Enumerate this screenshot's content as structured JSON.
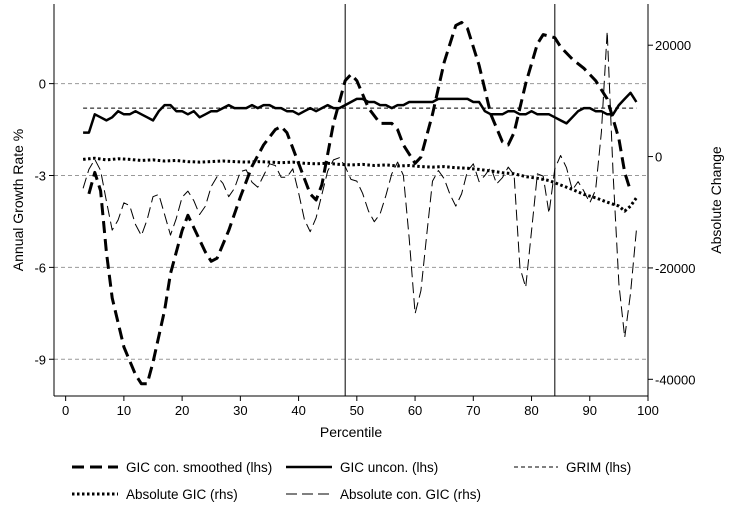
{
  "chart_data": {
    "type": "line",
    "xlabel": "Percentile",
    "ylabel_left": "Annual Growth Rate %",
    "ylabel_right": "Absolute Change",
    "xlim": [
      -2,
      100
    ],
    "ylim_left": [
      -10.2,
      2.6
    ],
    "ylim_right": [
      -43000,
      27400
    ],
    "x_ticks": [
      0,
      10,
      20,
      30,
      40,
      50,
      60,
      70,
      80,
      90,
      100
    ],
    "y_ticks_left": [
      0,
      -3,
      -6,
      -9
    ],
    "y_ticks_right": [
      20000,
      0,
      -20000,
      -40000
    ],
    "grid_left_y": [
      0,
      -3,
      -6,
      -9
    ],
    "vertical_lines_x": [
      48,
      84
    ],
    "grim_value": -0.8,
    "series": [
      {
        "name": "GIC con. smoothed (lhs)",
        "axis": "left",
        "style": "long-dash-thick",
        "points": [
          [
            4,
            -3.6
          ],
          [
            5,
            -2.9
          ],
          [
            6,
            -3.5
          ],
          [
            7,
            -5.5
          ],
          [
            8,
            -7.0
          ],
          [
            10,
            -8.6
          ],
          [
            12,
            -9.5
          ],
          [
            13,
            -9.8
          ],
          [
            14,
            -9.8
          ],
          [
            15,
            -9.1
          ],
          [
            17,
            -7.4
          ],
          [
            18,
            -6.2
          ],
          [
            20,
            -4.8
          ],
          [
            21,
            -4.3
          ],
          [
            22,
            -4.7
          ],
          [
            24,
            -5.5
          ],
          [
            25,
            -5.8
          ],
          [
            26,
            -5.7
          ],
          [
            28,
            -4.8
          ],
          [
            30,
            -3.7
          ],
          [
            32,
            -2.7
          ],
          [
            34,
            -2.0
          ],
          [
            36,
            -1.5
          ],
          [
            37,
            -1.4
          ],
          [
            38,
            -1.6
          ],
          [
            40,
            -2.6
          ],
          [
            42,
            -3.6
          ],
          [
            43,
            -3.8
          ],
          [
            44,
            -3.3
          ],
          [
            46,
            -1.3
          ],
          [
            48,
            0.1
          ],
          [
            49,
            0.3
          ],
          [
            50,
            0.1
          ],
          [
            52,
            -0.8
          ],
          [
            54,
            -1.3
          ],
          [
            56,
            -1.3
          ],
          [
            57,
            -1.5
          ],
          [
            58,
            -2.0
          ],
          [
            60,
            -2.6
          ],
          [
            61,
            -2.4
          ],
          [
            63,
            -1.0
          ],
          [
            65,
            0.7
          ],
          [
            67,
            1.9
          ],
          [
            68,
            2.0
          ],
          [
            69,
            1.8
          ],
          [
            71,
            0.6
          ],
          [
            73,
            -1.0
          ],
          [
            75,
            -1.9
          ],
          [
            76,
            -2.0
          ],
          [
            77,
            -1.6
          ],
          [
            79,
            0.0
          ],
          [
            81,
            1.3
          ],
          [
            82,
            1.6
          ],
          [
            84,
            1.5
          ],
          [
            85,
            1.2
          ],
          [
            87,
            0.8
          ],
          [
            89,
            0.5
          ],
          [
            91,
            0.1
          ],
          [
            93,
            -0.5
          ],
          [
            95,
            -1.8
          ],
          [
            96,
            -2.9
          ],
          [
            97,
            -3.5
          ]
        ]
      },
      {
        "name": "GIC uncon. (lhs)",
        "axis": "left",
        "style": "solid-thick",
        "points": [
          [
            3,
            -1.6
          ],
          [
            4,
            -1.6
          ],
          [
            5,
            -1.0
          ],
          [
            6,
            -1.1
          ],
          [
            7,
            -1.2
          ],
          [
            8,
            -1.1
          ],
          [
            9,
            -0.9
          ],
          [
            10,
            -1.0
          ],
          [
            11,
            -1.0
          ],
          [
            12,
            -0.9
          ],
          [
            13,
            -1.0
          ],
          [
            14,
            -1.1
          ],
          [
            15,
            -1.2
          ],
          [
            16,
            -0.9
          ],
          [
            17,
            -0.7
          ],
          [
            18,
            -0.7
          ],
          [
            19,
            -0.9
          ],
          [
            20,
            -0.9
          ],
          [
            21,
            -1.0
          ],
          [
            22,
            -0.9
          ],
          [
            23,
            -1.1
          ],
          [
            24,
            -1.0
          ],
          [
            25,
            -0.9
          ],
          [
            26,
            -0.9
          ],
          [
            27,
            -0.8
          ],
          [
            28,
            -0.7
          ],
          [
            29,
            -0.8
          ],
          [
            30,
            -0.8
          ],
          [
            31,
            -0.8
          ],
          [
            32,
            -0.7
          ],
          [
            33,
            -0.8
          ],
          [
            34,
            -0.7
          ],
          [
            35,
            -0.7
          ],
          [
            36,
            -0.8
          ],
          [
            37,
            -0.8
          ],
          [
            38,
            -0.9
          ],
          [
            39,
            -0.9
          ],
          [
            40,
            -1.0
          ],
          [
            41,
            -0.9
          ],
          [
            42,
            -0.8
          ],
          [
            43,
            -0.9
          ],
          [
            44,
            -0.8
          ],
          [
            45,
            -0.7
          ],
          [
            46,
            -0.8
          ],
          [
            47,
            -0.8
          ],
          [
            48,
            -0.7
          ],
          [
            49,
            -0.6
          ],
          [
            50,
            -0.5
          ],
          [
            51,
            -0.5
          ],
          [
            52,
            -0.6
          ],
          [
            53,
            -0.6
          ],
          [
            54,
            -0.7
          ],
          [
            55,
            -0.7
          ],
          [
            56,
            -0.8
          ],
          [
            57,
            -0.7
          ],
          [
            58,
            -0.7
          ],
          [
            59,
            -0.6
          ],
          [
            60,
            -0.6
          ],
          [
            61,
            -0.6
          ],
          [
            62,
            -0.6
          ],
          [
            63,
            -0.6
          ],
          [
            64,
            -0.5
          ],
          [
            65,
            -0.5
          ],
          [
            66,
            -0.5
          ],
          [
            67,
            -0.5
          ],
          [
            68,
            -0.5
          ],
          [
            69,
            -0.5
          ],
          [
            70,
            -0.6
          ],
          [
            71,
            -0.6
          ],
          [
            72,
            -0.9
          ],
          [
            73,
            -1.0
          ],
          [
            74,
            -1.0
          ],
          [
            75,
            -1.0
          ],
          [
            76,
            -0.9
          ],
          [
            77,
            -0.9
          ],
          [
            78,
            -1.0
          ],
          [
            79,
            -1.0
          ],
          [
            80,
            -0.9
          ],
          [
            81,
            -1.0
          ],
          [
            82,
            -1.0
          ],
          [
            83,
            -1.0
          ],
          [
            84,
            -1.1
          ],
          [
            85,
            -1.2
          ],
          [
            86,
            -1.3
          ],
          [
            87,
            -1.1
          ],
          [
            88,
            -0.9
          ],
          [
            89,
            -0.8
          ],
          [
            90,
            -0.8
          ],
          [
            91,
            -0.9
          ],
          [
            92,
            -0.9
          ],
          [
            93,
            -1.0
          ],
          [
            94,
            -1.0
          ],
          [
            95,
            -0.7
          ],
          [
            96,
            -0.5
          ],
          [
            97,
            -0.3
          ],
          [
            98,
            -0.6
          ]
        ]
      },
      {
        "name": "GRIM (lhs)",
        "axis": "left",
        "style": "short-dash-thin",
        "points": [
          [
            3,
            -0.8
          ],
          [
            98,
            -0.8
          ]
        ]
      },
      {
        "name": "Absolute GIC (rhs)",
        "axis": "right",
        "style": "dotted-thick",
        "points": [
          [
            3,
            -500
          ],
          [
            5,
            -300
          ],
          [
            7,
            -600
          ],
          [
            9,
            -400
          ],
          [
            11,
            -500
          ],
          [
            13,
            -700
          ],
          [
            15,
            -600
          ],
          [
            17,
            -800
          ],
          [
            19,
            -700
          ],
          [
            21,
            -900
          ],
          [
            23,
            -1000
          ],
          [
            25,
            -900
          ],
          [
            27,
            -800
          ],
          [
            29,
            -900
          ],
          [
            31,
            -1000
          ],
          [
            33,
            -900
          ],
          [
            35,
            -1000
          ],
          [
            37,
            -1100
          ],
          [
            39,
            -1000
          ],
          [
            41,
            -1200
          ],
          [
            43,
            -1300
          ],
          [
            45,
            -1200
          ],
          [
            47,
            -1400
          ],
          [
            49,
            -1500
          ],
          [
            51,
            -1400
          ],
          [
            53,
            -1600
          ],
          [
            55,
            -1500
          ],
          [
            57,
            -1700
          ],
          [
            59,
            -1600
          ],
          [
            61,
            -1800
          ],
          [
            63,
            -1900
          ],
          [
            65,
            -1800
          ],
          [
            67,
            -2000
          ],
          [
            69,
            -2100
          ],
          [
            71,
            -2300
          ],
          [
            73,
            -2600
          ],
          [
            75,
            -2900
          ],
          [
            77,
            -3100
          ],
          [
            79,
            -3600
          ],
          [
            81,
            -3900
          ],
          [
            83,
            -4300
          ],
          [
            85,
            -5100
          ],
          [
            87,
            -5900
          ],
          [
            89,
            -6800
          ],
          [
            91,
            -7400
          ],
          [
            93,
            -8200
          ],
          [
            95,
            -8900
          ],
          [
            96,
            -9800
          ],
          [
            97,
            -8900
          ],
          [
            98,
            -7400
          ]
        ]
      },
      {
        "name": "Absolute con. GIC (rhs)",
        "axis": "right",
        "style": "long-dash-thin",
        "points": [
          [
            3,
            -5700
          ],
          [
            4,
            -2300
          ],
          [
            5,
            -500
          ],
          [
            6,
            -2500
          ],
          [
            7,
            -8000
          ],
          [
            8,
            -13200
          ],
          [
            9,
            -11400
          ],
          [
            10,
            -8300
          ],
          [
            11,
            -8800
          ],
          [
            12,
            -12200
          ],
          [
            13,
            -14200
          ],
          [
            14,
            -11300
          ],
          [
            15,
            -7200
          ],
          [
            16,
            -6800
          ],
          [
            17,
            -10400
          ],
          [
            18,
            -14100
          ],
          [
            19,
            -11100
          ],
          [
            20,
            -7300
          ],
          [
            21,
            -6200
          ],
          [
            22,
            -7900
          ],
          [
            23,
            -10400
          ],
          [
            24,
            -8900
          ],
          [
            25,
            -5400
          ],
          [
            26,
            -3600
          ],
          [
            27,
            -4800
          ],
          [
            28,
            -7200
          ],
          [
            29,
            -5700
          ],
          [
            30,
            -2700
          ],
          [
            31,
            -2400
          ],
          [
            32,
            -4600
          ],
          [
            33,
            -5500
          ],
          [
            34,
            -3400
          ],
          [
            35,
            -1300
          ],
          [
            36,
            -1600
          ],
          [
            37,
            -3700
          ],
          [
            38,
            -3700
          ],
          [
            39,
            -2200
          ],
          [
            40,
            -6500
          ],
          [
            41,
            -11300
          ],
          [
            42,
            -13500
          ],
          [
            43,
            -11000
          ],
          [
            44,
            -6800
          ],
          [
            45,
            -2600
          ],
          [
            46,
            -600
          ],
          [
            47,
            -200
          ],
          [
            48,
            -1800
          ],
          [
            49,
            -4100
          ],
          [
            50,
            -4400
          ],
          [
            51,
            -6600
          ],
          [
            52,
            -9800
          ],
          [
            53,
            -11700
          ],
          [
            54,
            -10300
          ],
          [
            55,
            -7000
          ],
          [
            56,
            -3100
          ],
          [
            57,
            -1000
          ],
          [
            58,
            -3400
          ],
          [
            59,
            -14700
          ],
          [
            60,
            -28200
          ],
          [
            61,
            -24100
          ],
          [
            62,
            -14100
          ],
          [
            63,
            -4400
          ],
          [
            64,
            -2500
          ],
          [
            65,
            -4000
          ],
          [
            66,
            -6800
          ],
          [
            67,
            -8900
          ],
          [
            68,
            -6700
          ],
          [
            69,
            -2600
          ],
          [
            70,
            -1300
          ],
          [
            71,
            -4500
          ],
          [
            72,
            -3400
          ],
          [
            73,
            -1900
          ],
          [
            74,
            -4900
          ],
          [
            75,
            -3800
          ],
          [
            76,
            -1900
          ],
          [
            77,
            -3300
          ],
          [
            78,
            -19900
          ],
          [
            79,
            -23500
          ],
          [
            80,
            -13400
          ],
          [
            81,
            -3100
          ],
          [
            82,
            -3500
          ],
          [
            83,
            -10200
          ],
          [
            84,
            -2200
          ],
          [
            85,
            200
          ],
          [
            86,
            -2000
          ],
          [
            87,
            -6000
          ],
          [
            88,
            -4500
          ],
          [
            89,
            -6200
          ],
          [
            90,
            -8300
          ],
          [
            91,
            -6000
          ],
          [
            92,
            4400
          ],
          [
            93,
            22500
          ],
          [
            94,
            -3100
          ],
          [
            95,
            -22900
          ],
          [
            96,
            -32500
          ],
          [
            97,
            -24600
          ],
          [
            98,
            -13200
          ]
        ]
      }
    ],
    "legend": {
      "placement": "bottom",
      "entries": [
        "GIC con. smoothed (lhs)",
        "GIC uncon. (lhs)",
        "GRIM (lhs)",
        "Absolute GIC (rhs)",
        "Absolute con. GIC (rhs)"
      ]
    }
  }
}
